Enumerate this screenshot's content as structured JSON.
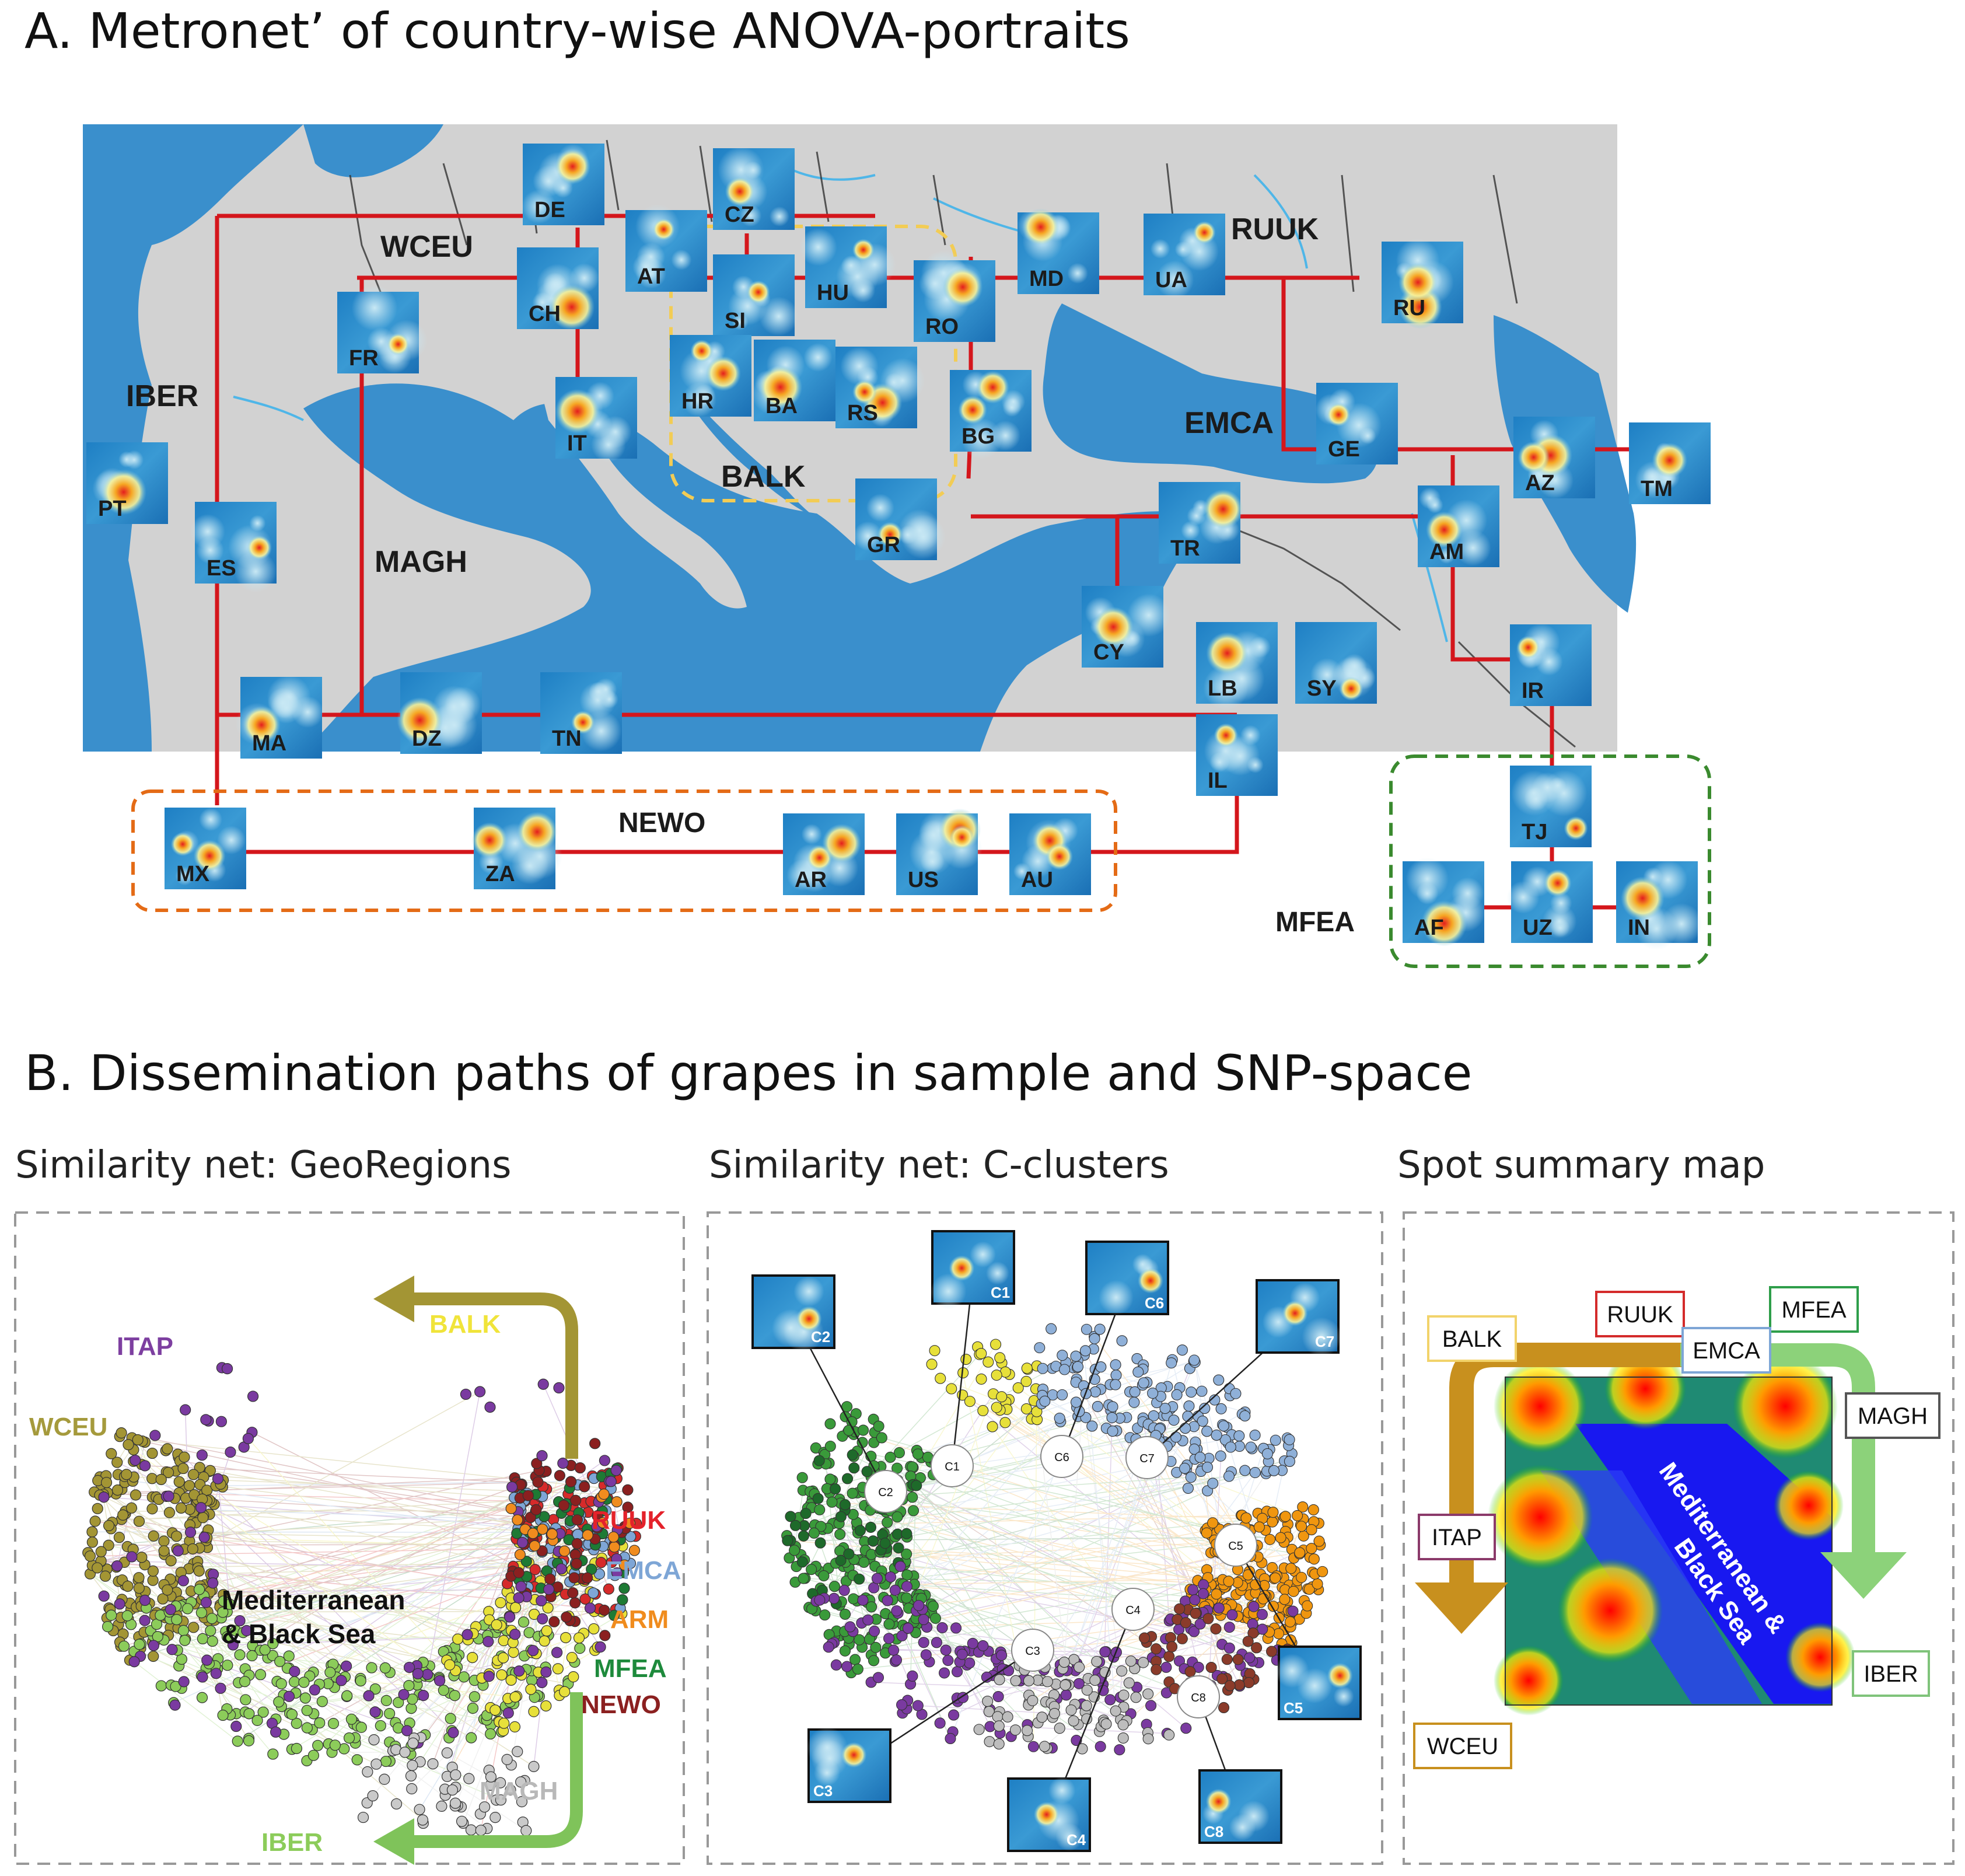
{
  "panelA": {
    "title": "A.  Metronet’ of country-wise ANOVA-portraits",
    "regions": [
      {
        "id": "WCEU",
        "label": "WCEU"
      },
      {
        "id": "RUUK",
        "label": "RUUK"
      },
      {
        "id": "IBER",
        "label": "IBER"
      },
      {
        "id": "EMCA",
        "label": "EMCA"
      },
      {
        "id": "BALK",
        "label": "BALK"
      },
      {
        "id": "MAGH",
        "label": "MAGH"
      },
      {
        "id": "NEWO",
        "label": "NEWO"
      },
      {
        "id": "MFEA",
        "label": "MFEA"
      }
    ],
    "countries": [
      "DE",
      "CZ",
      "AT",
      "CH",
      "SI",
      "HU",
      "MD",
      "UA",
      "RU",
      "FR",
      "RO",
      "HR",
      "BA",
      "RS",
      "IT",
      "BG",
      "PT",
      "ES",
      "GE",
      "AZ",
      "TM",
      "GR",
      "TR",
      "AM",
      "CY",
      "LB",
      "SY",
      "IR",
      "MA",
      "DZ",
      "TN",
      "IL",
      "MX",
      "ZA",
      "AR",
      "US",
      "AU",
      "TJ",
      "AF",
      "UZ",
      "IN"
    ]
  },
  "panelB": {
    "title": "B. Dissemination paths of grapes in sample and SNP-space",
    "georegions": {
      "subtitle": "Similarity net: GeoRegions",
      "center_label_1": "Mediterranean",
      "center_label_2": "& Black Sea",
      "labels": [
        {
          "id": "BALK",
          "text": "BALK",
          "color": "#f0e43a"
        },
        {
          "id": "ITAP",
          "text": "ITAP",
          "color": "#7d3fa0"
        },
        {
          "id": "WCEU",
          "text": "WCEU",
          "color": "#a59a3c"
        },
        {
          "id": "RUUK",
          "text": "RUUK",
          "color": "#e4222b"
        },
        {
          "id": "EMCA",
          "text": "EMCA",
          "color": "#7ea6d6"
        },
        {
          "id": "ARM",
          "text": "ARM",
          "color": "#f08c1e"
        },
        {
          "id": "MFEA",
          "text": "MFEA",
          "color": "#1e8a3c"
        },
        {
          "id": "NEWO",
          "text": "NEWO",
          "color": "#8b2020"
        },
        {
          "id": "MAGH",
          "text": "MAGH",
          "color": "#b8b8b8"
        },
        {
          "id": "IBER",
          "text": "IBER",
          "color": "#8ccc5a"
        }
      ]
    },
    "clusters": {
      "subtitle": "Similarity net: C-clusters",
      "nodes": [
        "C1",
        "C2",
        "C3",
        "C4",
        "C5",
        "C6",
        "C7",
        "C8"
      ]
    },
    "spot": {
      "subtitle": "Spot summary map",
      "labels": [
        {
          "id": "BALK",
          "text": "BALK",
          "border": "#f2d36b"
        },
        {
          "id": "RUUK",
          "text": "RUUK",
          "border": "#d42b2b"
        },
        {
          "id": "MFEA",
          "text": "MFEA",
          "border": "#2e9e4a"
        },
        {
          "id": "EMCA",
          "text": "EMCA",
          "border": "#7ea6d6"
        },
        {
          "id": "MAGH",
          "text": "MAGH",
          "border": "#555555"
        },
        {
          "id": "ITAP",
          "text": "ITAP",
          "border": "#8b3a6a"
        },
        {
          "id": "IBER",
          "text": "IBER",
          "border": "#7fc37a"
        },
        {
          "id": "WCEU",
          "text": "WCEU",
          "border": "#c8901e"
        }
      ],
      "map_label_1": "Mediterranean &",
      "map_label_2": "Black Sea"
    }
  }
}
